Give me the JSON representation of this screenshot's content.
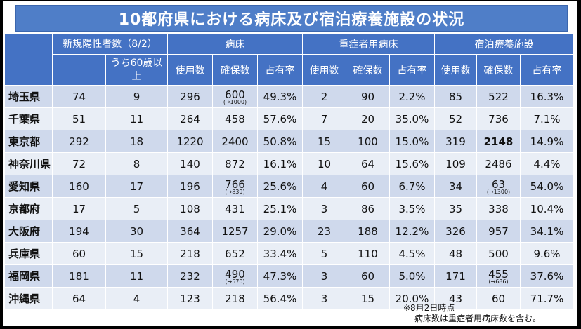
{
  "title": "10都府県における病床及び宿泊療養施設の状況",
  "headers": {
    "new_cases": "新規陽性者数（8/2）",
    "age60": "うち60歳以上",
    "beds": "病床",
    "severe_beds": "重症者用病床",
    "hotel": "宿泊療養施設",
    "used": "使用数",
    "secured": "確保数",
    "rate": "占有率"
  },
  "rows": [
    {
      "pref": "埼玉県",
      "new": "74",
      "age60": "9",
      "bed_used": "296",
      "bed_secured": "600",
      "bed_note": "(→1000)",
      "bed_rate": "49.3%",
      "sev_used": "2",
      "sev_secured": "90",
      "sev_rate": "2.2%",
      "hotel_used": "85",
      "hotel_secured": "522",
      "hotel_note": "",
      "hotel_rate": "16.3%"
    },
    {
      "pref": "千葉県",
      "new": "51",
      "age60": "11",
      "bed_used": "264",
      "bed_secured": "458",
      "bed_note": "",
      "bed_rate": "57.6%",
      "sev_used": "7",
      "sev_secured": "20",
      "sev_rate": "35.0%",
      "hotel_used": "52",
      "hotel_secured": "736",
      "hotel_note": "",
      "hotel_rate": "7.1%"
    },
    {
      "pref": "東京都",
      "new": "292",
      "age60": "18",
      "bed_used": "1220",
      "bed_secured": "2400",
      "bed_note": "",
      "bed_rate": "50.8%",
      "sev_used": "15",
      "sev_secured": "100",
      "sev_rate": "15.0%",
      "hotel_used": "319",
      "hotel_secured": "2148",
      "hotel_note": "",
      "hotel_rate": "14.9%"
    },
    {
      "pref": "神奈川県",
      "new": "72",
      "age60": "8",
      "bed_used": "140",
      "bed_secured": "872",
      "bed_note": "",
      "bed_rate": "16.1%",
      "sev_used": "10",
      "sev_secured": "64",
      "sev_rate": "15.6%",
      "hotel_used": "109",
      "hotel_secured": "2486",
      "hotel_note": "",
      "hotel_rate": "4.4%"
    },
    {
      "pref": "愛知県",
      "new": "160",
      "age60": "17",
      "bed_used": "196",
      "bed_secured": "766",
      "bed_note": "(→839)",
      "bed_rate": "25.6%",
      "sev_used": "4",
      "sev_secured": "60",
      "sev_rate": "6.7%",
      "hotel_used": "34",
      "hotel_secured": "63",
      "hotel_note": "(→1300)",
      "hotel_rate": "54.0%"
    },
    {
      "pref": "京都府",
      "new": "17",
      "age60": "5",
      "bed_used": "108",
      "bed_secured": "431",
      "bed_note": "",
      "bed_rate": "25.1%",
      "sev_used": "3",
      "sev_secured": "86",
      "sev_rate": "3.5%",
      "hotel_used": "35",
      "hotel_secured": "338",
      "hotel_note": "",
      "hotel_rate": "10.4%"
    },
    {
      "pref": "大阪府",
      "new": "194",
      "age60": "30",
      "bed_used": "364",
      "bed_secured": "1257",
      "bed_note": "",
      "bed_rate": "29.0%",
      "sev_used": "23",
      "sev_secured": "188",
      "sev_rate": "12.2%",
      "hotel_used": "326",
      "hotel_secured": "957",
      "hotel_note": "",
      "hotel_rate": "34.1%"
    },
    {
      "pref": "兵庫県",
      "new": "60",
      "age60": "15",
      "bed_used": "218",
      "bed_secured": "652",
      "bed_note": "",
      "bed_rate": "33.4%",
      "sev_used": "5",
      "sev_secured": "110",
      "sev_rate": "4.5%",
      "hotel_used": "48",
      "hotel_secured": "500",
      "hotel_note": "",
      "hotel_rate": "9.6%"
    },
    {
      "pref": "福岡県",
      "new": "181",
      "age60": "11",
      "bed_used": "232",
      "bed_secured": "490",
      "bed_note": "(→570)",
      "bed_rate": "47.3%",
      "sev_used": "3",
      "sev_secured": "60",
      "sev_rate": "5.0%",
      "hotel_used": "171",
      "hotel_secured": "455",
      "hotel_note": "(→686)",
      "hotel_rate": "37.6%"
    },
    {
      "pref": "沖縄県",
      "new": "64",
      "age60": "4",
      "bed_used": "123",
      "bed_secured": "218",
      "bed_note": "",
      "bed_rate": "56.4%",
      "sev_used": "3",
      "sev_secured": "15",
      "sev_rate": "20.0%",
      "hotel_used": "43",
      "hotel_secured": "60",
      "hotel_note": "",
      "hotel_rate": "71.7%"
    }
  ],
  "footnotes": [
    "※8月2日時点",
    "病床数は重症者用病床数を含む。"
  ]
}
